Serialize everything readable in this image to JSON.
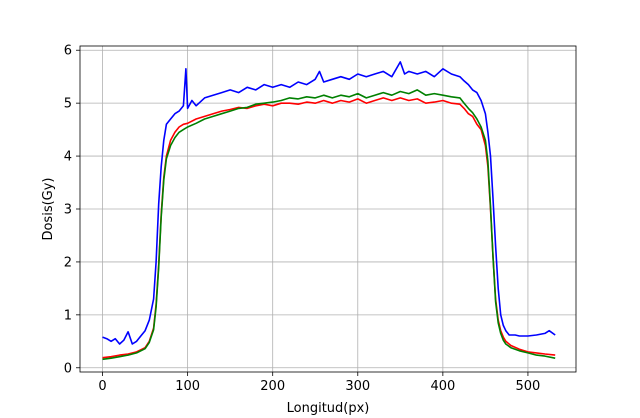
{
  "chart_data": {
    "type": "line",
    "title": "",
    "xlabel": "Longitud(px)",
    "ylabel": "Dosis(Gy)",
    "xlim": [
      -26.5,
      556.5
    ],
    "ylim": [
      -0.08,
      6.08
    ],
    "xticks": [
      0,
      100,
      200,
      300,
      400,
      500
    ],
    "yticks": [
      0,
      1,
      2,
      3,
      4,
      5,
      6
    ],
    "grid": true,
    "legend": "none",
    "series": [
      {
        "color": "#ff0000",
        "x": [
          0,
          10,
          20,
          30,
          40,
          50,
          55,
          60,
          63,
          66,
          69,
          72,
          75,
          80,
          85,
          90,
          95,
          100,
          110,
          120,
          130,
          140,
          150,
          160,
          170,
          180,
          190,
          200,
          210,
          220,
          230,
          240,
          250,
          260,
          270,
          280,
          290,
          300,
          310,
          320,
          330,
          340,
          350,
          360,
          370,
          380,
          390,
          400,
          410,
          420,
          425,
          430,
          435,
          440,
          445,
          450,
          453,
          456,
          459,
          462,
          465,
          468,
          471,
          474,
          480,
          490,
          500,
          510,
          520,
          532
        ],
        "y": [
          0.19,
          0.21,
          0.24,
          0.26,
          0.3,
          0.38,
          0.5,
          0.75,
          1.2,
          1.95,
          2.9,
          3.6,
          4.0,
          4.3,
          4.45,
          4.55,
          4.6,
          4.62,
          4.7,
          4.75,
          4.8,
          4.85,
          4.88,
          4.92,
          4.9,
          4.95,
          4.98,
          4.95,
          5.0,
          5.0,
          4.98,
          5.02,
          5.0,
          5.05,
          5.0,
          5.05,
          5.02,
          5.08,
          5.0,
          5.05,
          5.1,
          5.05,
          5.1,
          5.05,
          5.08,
          5.0,
          5.02,
          5.05,
          5.0,
          4.98,
          4.9,
          4.8,
          4.75,
          4.6,
          4.5,
          4.2,
          3.8,
          3.0,
          2.1,
          1.3,
          0.9,
          0.7,
          0.58,
          0.5,
          0.42,
          0.35,
          0.3,
          0.28,
          0.26,
          0.24
        ]
      },
      {
        "color": "#008000",
        "x": [
          0,
          10,
          20,
          30,
          40,
          50,
          55,
          60,
          63,
          66,
          69,
          72,
          75,
          80,
          85,
          90,
          95,
          100,
          110,
          120,
          130,
          140,
          150,
          160,
          170,
          180,
          190,
          200,
          210,
          220,
          230,
          240,
          250,
          260,
          270,
          280,
          290,
          300,
          310,
          320,
          330,
          340,
          350,
          360,
          370,
          380,
          390,
          400,
          410,
          420,
          425,
          430,
          435,
          440,
          445,
          450,
          453,
          456,
          459,
          462,
          465,
          468,
          471,
          474,
          480,
          490,
          500,
          510,
          520,
          532
        ],
        "y": [
          0.16,
          0.18,
          0.21,
          0.24,
          0.28,
          0.36,
          0.48,
          0.72,
          1.15,
          1.9,
          2.85,
          3.55,
          3.95,
          4.2,
          4.35,
          4.45,
          4.5,
          4.55,
          4.62,
          4.7,
          4.75,
          4.8,
          4.85,
          4.9,
          4.92,
          4.98,
          5.0,
          5.02,
          5.05,
          5.1,
          5.08,
          5.12,
          5.1,
          5.15,
          5.1,
          5.15,
          5.12,
          5.18,
          5.1,
          5.15,
          5.2,
          5.15,
          5.22,
          5.18,
          5.25,
          5.15,
          5.18,
          5.15,
          5.12,
          5.1,
          5.0,
          4.9,
          4.82,
          4.7,
          4.55,
          4.3,
          3.9,
          3.05,
          2.1,
          1.25,
          0.85,
          0.65,
          0.52,
          0.45,
          0.38,
          0.32,
          0.28,
          0.24,
          0.22,
          0.18
        ]
      },
      {
        "color": "#0000ff",
        "x": [
          0,
          5,
          10,
          15,
          20,
          25,
          30,
          35,
          40,
          45,
          50,
          55,
          60,
          63,
          66,
          69,
          72,
          75,
          80,
          85,
          90,
          95,
          98,
          100,
          105,
          110,
          120,
          130,
          140,
          150,
          160,
          170,
          180,
          190,
          200,
          210,
          220,
          230,
          240,
          250,
          255,
          260,
          270,
          280,
          290,
          300,
          310,
          320,
          330,
          340,
          350,
          355,
          360,
          370,
          380,
          390,
          400,
          410,
          420,
          425,
          430,
          435,
          440,
          445,
          450,
          453,
          456,
          459,
          462,
          465,
          468,
          471,
          474,
          478,
          485,
          490,
          500,
          510,
          520,
          525,
          532
        ],
        "y": [
          0.58,
          0.55,
          0.5,
          0.55,
          0.45,
          0.52,
          0.68,
          0.45,
          0.5,
          0.6,
          0.7,
          0.9,
          1.3,
          2.0,
          3.1,
          3.8,
          4.3,
          4.6,
          4.7,
          4.8,
          4.85,
          4.95,
          5.65,
          4.9,
          5.05,
          4.95,
          5.1,
          5.15,
          5.2,
          5.25,
          5.2,
          5.3,
          5.25,
          5.35,
          5.3,
          5.35,
          5.3,
          5.4,
          5.35,
          5.45,
          5.6,
          5.4,
          5.45,
          5.5,
          5.45,
          5.55,
          5.5,
          5.55,
          5.6,
          5.5,
          5.78,
          5.55,
          5.6,
          5.55,
          5.6,
          5.5,
          5.65,
          5.55,
          5.5,
          5.42,
          5.35,
          5.25,
          5.2,
          5.05,
          4.8,
          4.45,
          4.0,
          3.2,
          2.3,
          1.5,
          1.0,
          0.8,
          0.7,
          0.62,
          0.62,
          0.6,
          0.6,
          0.62,
          0.65,
          0.7,
          0.62
        ]
      }
    ]
  }
}
